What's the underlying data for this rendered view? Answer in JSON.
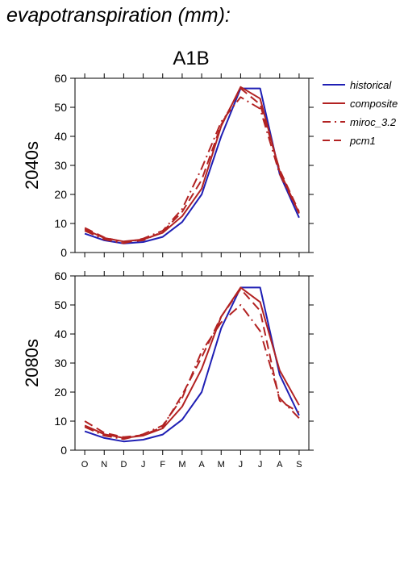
{
  "header": {
    "title": "evapotranspiration (mm):",
    "scenario": "A1B"
  },
  "colors": {
    "historical": "#1f1fb4",
    "models": "#b22222"
  },
  "chart_data": [
    {
      "type": "line",
      "panel_label": "2040s",
      "categories": [
        "O",
        "N",
        "D",
        "J",
        "F",
        "M",
        "A",
        "M",
        "J",
        "J",
        "A",
        "S"
      ],
      "ylim": [
        0,
        60
      ],
      "yticks": [
        0,
        10,
        20,
        30,
        40,
        50,
        60
      ],
      "legend_position": "right",
      "series": [
        {
          "name": "historical",
          "style": "solid",
          "values": [
            6.5,
            4.2,
            3.1,
            3.6,
            5.4,
            10.5,
            20,
            40,
            56.5,
            56.5,
            27,
            12
          ]
        },
        {
          "name": "composite",
          "style": "solid",
          "values": [
            8,
            5,
            3.8,
            4.5,
            6.8,
            12.5,
            22,
            43.5,
            57,
            53,
            28,
            13.5
          ]
        },
        {
          "name": "miroc_3.2",
          "style": "dashdot",
          "values": [
            7.5,
            4.5,
            3.2,
            4.8,
            7.5,
            15,
            29,
            45,
            53.5,
            49.5,
            27,
            13.5
          ]
        },
        {
          "name": "pcm1",
          "style": "dashed",
          "values": [
            8.5,
            5.2,
            3.6,
            4.2,
            7.2,
            14,
            25,
            44,
            56.5,
            51,
            28.5,
            14
          ]
        }
      ]
    },
    {
      "type": "line",
      "panel_label": "2080s",
      "categories": [
        "O",
        "N",
        "D",
        "J",
        "F",
        "M",
        "A",
        "M",
        "J",
        "J",
        "A",
        "S"
      ],
      "ylim": [
        0,
        60
      ],
      "yticks": [
        0,
        10,
        20,
        30,
        40,
        50,
        60
      ],
      "series": [
        {
          "name": "historical",
          "style": "solid",
          "values": [
            6.5,
            4.2,
            3,
            3.6,
            5.4,
            10.5,
            20,
            42,
            56,
            56,
            26,
            12
          ]
        },
        {
          "name": "composite",
          "style": "solid",
          "values": [
            8.5,
            5.5,
            4.2,
            5,
            7.5,
            15,
            28,
            46,
            56,
            51,
            27.5,
            15.5
          ]
        },
        {
          "name": "miroc_3.2",
          "style": "dashdot",
          "values": [
            8,
            5,
            3.8,
            5.5,
            8.5,
            18,
            34,
            44,
            50,
            41,
            18,
            11
          ]
        },
        {
          "name": "pcm1",
          "style": "dashed",
          "values": [
            10,
            6,
            4.5,
            5.2,
            8,
            19,
            32,
            46,
            55.5,
            48,
            17,
            13
          ]
        }
      ]
    }
  ]
}
